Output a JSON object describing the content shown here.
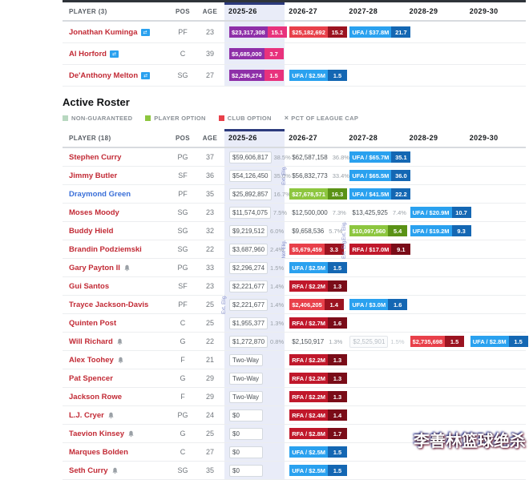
{
  "watermark": "李善林篮球绝杀",
  "years": [
    "2025-26",
    "2026-27",
    "2027-28",
    "2028-29",
    "2029-30"
  ],
  "headers": {
    "pos": "POS",
    "age": "AGE"
  },
  "colors": {
    "player_link": "#c22a35",
    "alt_link": "#3a6fd8",
    "band": "#e9ecf8",
    "kinds": {
      "ufa": {
        "value": "#2aa1ef",
        "pct": "#1467b3"
      },
      "rfa": {
        "value": "#c0182b",
        "pct": "#7a0c18"
      },
      "club": {
        "value": "#e8404a",
        "pct": "#9b1320"
      },
      "player": {
        "value": "#8dc63f",
        "pct": "#5a9216"
      },
      "signed": {
        "value": "#8e2fa8",
        "pct": "#e8327c"
      }
    }
  },
  "section": {
    "title": "Active Roster",
    "legend": [
      {
        "label": "NON-GUARANTEED",
        "swatch": "#b8d8c0",
        "type": "square"
      },
      {
        "label": "PLAYER OPTION",
        "swatch": "#8dc63f",
        "type": "square"
      },
      {
        "label": "CLUB OPTION",
        "swatch": "#e8404a",
        "type": "square"
      },
      {
        "label": "PCT OF LEAGUE CAP",
        "swatch": "",
        "type": "x"
      }
    ]
  },
  "table1": {
    "player_header": "PLAYER (3)",
    "rows": [
      {
        "name": "Jonathan Kuminga",
        "icon": "trade",
        "pos": "PF",
        "age": "23",
        "cells": [
          {
            "type": "chip",
            "kind": "signed",
            "value": "$23,317,308",
            "pct": "15.1"
          },
          {
            "type": "chip",
            "kind": "club",
            "value": "$25,182,692",
            "pct": "15.2"
          },
          {
            "type": "chip",
            "kind": "ufa",
            "value": "UFA / $37.8M",
            "pct": "21.7"
          },
          null,
          null
        ]
      },
      {
        "name": "Al Horford",
        "icon": "trade",
        "pos": "C",
        "age": "39",
        "cells": [
          {
            "type": "chip",
            "kind": "signed",
            "value": "$5,685,000",
            "pct": "3.7"
          },
          null,
          null,
          null,
          null
        ]
      },
      {
        "name": "De'Anthony Melton",
        "icon": "trade",
        "pos": "SG",
        "age": "27",
        "cells": [
          {
            "type": "chip",
            "kind": "signed",
            "value": "$2,296,274",
            "pct": "1.5"
          },
          {
            "type": "chip",
            "kind": "ufa",
            "value": "UFA / $2.5M",
            "pct": "1.5"
          },
          null,
          null,
          null
        ]
      }
    ]
  },
  "table2": {
    "player_header": "PLAYER (18)",
    "rows": [
      {
        "name": "Stephen Curry",
        "pos": "PG",
        "age": "37",
        "cells": [
          {
            "type": "box",
            "value": "$59,606,817",
            "pct": "38.5%"
          },
          {
            "type": "plain",
            "value": "$62,587,158",
            "pct": "36.8%"
          },
          {
            "type": "chip",
            "kind": "ufa",
            "value": "UFA / $65.7M",
            "pct": "35.1"
          },
          null,
          null
        ]
      },
      {
        "name": "Jimmy Butler",
        "pos": "SF",
        "age": "36",
        "cells": [
          {
            "type": "box",
            "value": "$54,126,450",
            "pct": "35.0%"
          },
          {
            "type": "plain",
            "value": "$56,832,773",
            "pct": "33.4%",
            "elig": "Ext. Elig."
          },
          {
            "type": "chip",
            "kind": "ufa",
            "value": "UFA / $65.5M",
            "pct": "36.0"
          },
          null,
          null
        ]
      },
      {
        "name": "Draymond Green",
        "name_color": "alt",
        "pos": "PF",
        "age": "35",
        "cells": [
          {
            "type": "box",
            "value": "$25,892,857",
            "pct": "16.7%"
          },
          {
            "type": "chip",
            "kind": "player",
            "value": "$27,678,571",
            "pct": "16.3"
          },
          {
            "type": "chip",
            "kind": "ufa",
            "value": "UFA / $41.5M",
            "pct": "22.2"
          },
          null,
          null
        ]
      },
      {
        "name": "Moses Moody",
        "pos": "SG",
        "age": "23",
        "cells": [
          {
            "type": "box",
            "value": "$11,574,075",
            "pct": "7.5%"
          },
          {
            "type": "plain",
            "value": "$12,500,000",
            "pct": "7.3%"
          },
          {
            "type": "plain",
            "value": "$13,425,925",
            "pct": "7.4%"
          },
          {
            "type": "chip",
            "kind": "ufa",
            "value": "UFA / $20.9M",
            "pct": "10.7"
          },
          null
        ]
      },
      {
        "name": "Buddy Hield",
        "pos": "SG",
        "age": "32",
        "cells": [
          {
            "type": "box",
            "value": "$9,219,512",
            "pct": "6.0%"
          },
          {
            "type": "plain",
            "value": "$9,658,536",
            "pct": "5.7%"
          },
          {
            "type": "chip",
            "kind": "player",
            "value": "$10,097,560",
            "pct": "5.4",
            "elig": "Ext. Elig."
          },
          {
            "type": "chip",
            "kind": "ufa",
            "value": "UFA / $19.2M",
            "pct": "9.3"
          },
          null
        ]
      },
      {
        "name": "Brandin Podziemski",
        "pos": "SG",
        "age": "22",
        "cells": [
          {
            "type": "box",
            "value": "$3,687,960",
            "pct": "2.4%"
          },
          {
            "type": "chip",
            "kind": "club",
            "value": "$5,679,459",
            "pct": "3.3",
            "elig": "Not Elig."
          },
          {
            "type": "chip",
            "kind": "rfa",
            "value": "RFA / $17.0M",
            "pct": "9.1",
            "elig": "Ext. Elig."
          },
          null,
          null
        ]
      },
      {
        "name": "Gary Payton II",
        "icon": "bell",
        "pos": "PG",
        "age": "33",
        "cells": [
          {
            "type": "box",
            "value": "$2,296,274",
            "pct": "1.5%"
          },
          {
            "type": "chip",
            "kind": "ufa",
            "value": "UFA / $2.5M",
            "pct": "1.5"
          },
          null,
          null,
          null
        ]
      },
      {
        "name": "Gui Santos",
        "pos": "SF",
        "age": "23",
        "cells": [
          {
            "type": "box",
            "value": "$2,221,677",
            "pct": "1.4%"
          },
          {
            "type": "chip",
            "kind": "rfa",
            "value": "RFA / $2.2M",
            "pct": "1.3"
          },
          null,
          null,
          null
        ]
      },
      {
        "name": "Trayce Jackson-Davis",
        "pos": "PF",
        "age": "25",
        "cells": [
          {
            "type": "box",
            "value": "$2,221,677",
            "pct": "1.4%",
            "elig": "Ext. Elig."
          },
          {
            "type": "chip",
            "kind": "club",
            "value": "$2,406,205",
            "pct": "1.4"
          },
          {
            "type": "chip",
            "kind": "ufa",
            "value": "UFA / $3.0M",
            "pct": "1.6"
          },
          null,
          null
        ]
      },
      {
        "name": "Quinten Post",
        "pos": "C",
        "age": "25",
        "cells": [
          {
            "type": "box",
            "value": "$1,955,377",
            "pct": "1.3%"
          },
          {
            "type": "chip",
            "kind": "rfa",
            "value": "RFA / $2.7M",
            "pct": "1.6"
          },
          null,
          null,
          null
        ]
      },
      {
        "name": "Will Richard",
        "icon": "bell",
        "pos": "G",
        "age": "22",
        "cells": [
          {
            "type": "box",
            "value": "$1,272,870",
            "pct": "0.8%"
          },
          {
            "type": "plain",
            "value": "$2,150,917",
            "pct": "1.3%"
          },
          {
            "type": "box-muted",
            "value": "$2,525,901",
            "pct": "1.5%"
          },
          {
            "type": "chip",
            "kind": "club",
            "value": "$2,735,698",
            "pct": "1.5"
          },
          {
            "type": "chip",
            "kind": "ufa",
            "value": "UFA / $2.8M",
            "pct": "1.5"
          }
        ]
      },
      {
        "name": "Alex Toohey",
        "icon": "bell",
        "pos": "F",
        "age": "21",
        "cells": [
          {
            "type": "box",
            "value": "Two-Way",
            "pct": ""
          },
          {
            "type": "chip",
            "kind": "rfa",
            "value": "RFA / $2.2M",
            "pct": "1.3"
          },
          null,
          null,
          null
        ]
      },
      {
        "name": "Pat Spencer",
        "pos": "G",
        "age": "29",
        "cells": [
          {
            "type": "box",
            "value": "Two-Way",
            "pct": ""
          },
          {
            "type": "chip",
            "kind": "rfa",
            "value": "RFA / $2.2M",
            "pct": "1.3"
          },
          null,
          null,
          null
        ]
      },
      {
        "name": "Jackson Rowe",
        "pos": "F",
        "age": "29",
        "cells": [
          {
            "type": "box",
            "value": "Two-Way",
            "pct": ""
          },
          {
            "type": "chip",
            "kind": "rfa",
            "value": "RFA / $2.2M",
            "pct": "1.3"
          },
          null,
          null,
          null
        ]
      },
      {
        "name": "L.J. Cryer",
        "icon": "bell",
        "pos": "PG",
        "age": "24",
        "cells": [
          {
            "type": "box",
            "value": "$0",
            "pct": ""
          },
          {
            "type": "chip",
            "kind": "rfa",
            "value": "RFA / $2.4M",
            "pct": "1.4"
          },
          null,
          null,
          null
        ]
      },
      {
        "name": "Taevion Kinsey",
        "icon": "bell",
        "pos": "G",
        "age": "25",
        "cells": [
          {
            "type": "box",
            "value": "$0",
            "pct": ""
          },
          {
            "type": "chip",
            "kind": "rfa",
            "value": "RFA / $2.8M",
            "pct": "1.7"
          },
          null,
          null,
          null
        ]
      },
      {
        "name": "Marques Bolden",
        "pos": "C",
        "age": "27",
        "cells": [
          {
            "type": "box",
            "value": "$0",
            "pct": ""
          },
          {
            "type": "chip",
            "kind": "ufa",
            "value": "UFA / $2.5M",
            "pct": "1.5"
          },
          null,
          null,
          null
        ]
      },
      {
        "name": "Seth Curry",
        "icon": "bell",
        "pos": "SG",
        "age": "35",
        "cells": [
          {
            "type": "box",
            "value": "$0",
            "pct": ""
          },
          {
            "type": "chip",
            "kind": "ufa",
            "value": "UFA / $2.5M",
            "pct": "1.5"
          },
          null,
          null,
          null
        ]
      }
    ]
  }
}
